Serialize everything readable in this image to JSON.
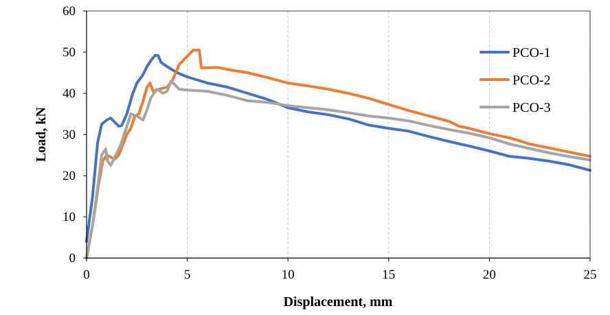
{
  "chart_data": {
    "type": "line",
    "xlabel": "Displacement, mm",
    "ylabel": "Load, kN",
    "xlim": [
      0,
      25
    ],
    "ylim": [
      0,
      60
    ],
    "x_ticks": [
      "0",
      "5",
      "10",
      "15",
      "20",
      "25"
    ],
    "y_ticks": [
      "0",
      "10",
      "20",
      "30",
      "40",
      "50",
      "60"
    ],
    "grid": "vertical dashed",
    "legend_position": "right",
    "series": [
      {
        "name": "PCO-1",
        "color": "#4472C4",
        "points": [
          [
            0,
            4
          ],
          [
            0.3,
            15
          ],
          [
            0.55,
            28
          ],
          [
            0.75,
            32.5
          ],
          [
            1.0,
            33.5
          ],
          [
            1.2,
            34
          ],
          [
            1.4,
            33
          ],
          [
            1.6,
            32
          ],
          [
            1.75,
            32.2
          ],
          [
            2.0,
            35
          ],
          [
            2.3,
            40
          ],
          [
            2.5,
            42.5
          ],
          [
            2.8,
            44.5
          ],
          [
            3.0,
            46.5
          ],
          [
            3.2,
            48
          ],
          [
            3.4,
            49.2
          ],
          [
            3.55,
            49.2
          ],
          [
            3.7,
            47.5
          ],
          [
            4.0,
            46.5
          ],
          [
            4.5,
            45
          ],
          [
            5.0,
            44
          ],
          [
            6.0,
            42.5
          ],
          [
            7.0,
            41.5
          ],
          [
            8.0,
            40
          ],
          [
            9.0,
            38.5
          ],
          [
            10.0,
            36.5
          ],
          [
            11.0,
            35.5
          ],
          [
            12.0,
            34.8
          ],
          [
            13.0,
            33.8
          ],
          [
            14.0,
            32.3
          ],
          [
            15.0,
            31.5
          ],
          [
            16.0,
            30.8
          ],
          [
            17.0,
            29.5
          ],
          [
            18.0,
            28.3
          ],
          [
            19.0,
            27.2
          ],
          [
            20.0,
            26
          ],
          [
            21.0,
            24.7
          ],
          [
            22.0,
            24.2
          ],
          [
            23.0,
            23.5
          ],
          [
            24.0,
            22.6
          ],
          [
            25.0,
            21.3
          ]
        ]
      },
      {
        "name": "PCO-2",
        "color": "#ED7D31",
        "points": [
          [
            0,
            0
          ],
          [
            0.3,
            8
          ],
          [
            0.6,
            18
          ],
          [
            0.8,
            23.5
          ],
          [
            1.0,
            25
          ],
          [
            1.2,
            24.5
          ],
          [
            1.4,
            24
          ],
          [
            1.6,
            25
          ],
          [
            1.8,
            27.5
          ],
          [
            2.0,
            30
          ],
          [
            2.2,
            31.5
          ],
          [
            2.4,
            34.5
          ],
          [
            2.6,
            35
          ],
          [
            2.8,
            38
          ],
          [
            3.0,
            41.5
          ],
          [
            3.15,
            42.5
          ],
          [
            3.3,
            40.5
          ],
          [
            3.6,
            41
          ],
          [
            4.0,
            41.5
          ],
          [
            4.3,
            43.5
          ],
          [
            4.6,
            47
          ],
          [
            5.0,
            49
          ],
          [
            5.3,
            50.5
          ],
          [
            5.6,
            50.5
          ],
          [
            5.7,
            46.2
          ],
          [
            6.0,
            46.2
          ],
          [
            6.5,
            46.3
          ],
          [
            7.0,
            45.8
          ],
          [
            8.0,
            45
          ],
          [
            9.0,
            43.8
          ],
          [
            10.0,
            42.5
          ],
          [
            11.0,
            41.8
          ],
          [
            12.0,
            41
          ],
          [
            13.0,
            40
          ],
          [
            14.0,
            38.8
          ],
          [
            15.0,
            37.3
          ],
          [
            16.0,
            35.8
          ],
          [
            17.0,
            34.5
          ],
          [
            18.0,
            33.2
          ],
          [
            18.5,
            32
          ],
          [
            19.0,
            31.5
          ],
          [
            20.0,
            30.2
          ],
          [
            21.0,
            29.2
          ],
          [
            22.0,
            27.7
          ],
          [
            23.0,
            26.7
          ],
          [
            24.0,
            25.7
          ],
          [
            25.0,
            24.7
          ]
        ]
      },
      {
        "name": "PCO-3",
        "color": "#A5A5A5",
        "points": [
          [
            0,
            0
          ],
          [
            0.3,
            8
          ],
          [
            0.55,
            17
          ],
          [
            0.75,
            25
          ],
          [
            0.95,
            26.5
          ],
          [
            1.05,
            23.5
          ],
          [
            1.2,
            22.5
          ],
          [
            1.4,
            24.5
          ],
          [
            1.7,
            27.5
          ],
          [
            2.0,
            32
          ],
          [
            2.2,
            35
          ],
          [
            2.5,
            34.5
          ],
          [
            2.8,
            33.5
          ],
          [
            3.0,
            36
          ],
          [
            3.2,
            39
          ],
          [
            3.5,
            41
          ],
          [
            3.8,
            40
          ],
          [
            4.0,
            40.5
          ],
          [
            4.2,
            43
          ],
          [
            4.4,
            42
          ],
          [
            4.6,
            41
          ],
          [
            5.0,
            40.8
          ],
          [
            6.0,
            40.5
          ],
          [
            7.0,
            39.5
          ],
          [
            8.0,
            38.2
          ],
          [
            9.0,
            37.8
          ],
          [
            10.0,
            37
          ],
          [
            11.0,
            36.5
          ],
          [
            12.0,
            36
          ],
          [
            13.0,
            35.3
          ],
          [
            14.0,
            34.5
          ],
          [
            15.0,
            34
          ],
          [
            16.0,
            33.3
          ],
          [
            17.0,
            32.2
          ],
          [
            18.0,
            31.2
          ],
          [
            19.0,
            30.3
          ],
          [
            20.0,
            29.2
          ],
          [
            21.0,
            27.7
          ],
          [
            22.0,
            26.6
          ],
          [
            23.0,
            25.5
          ],
          [
            24.0,
            24.6
          ],
          [
            25.0,
            23.8
          ]
        ]
      }
    ]
  }
}
